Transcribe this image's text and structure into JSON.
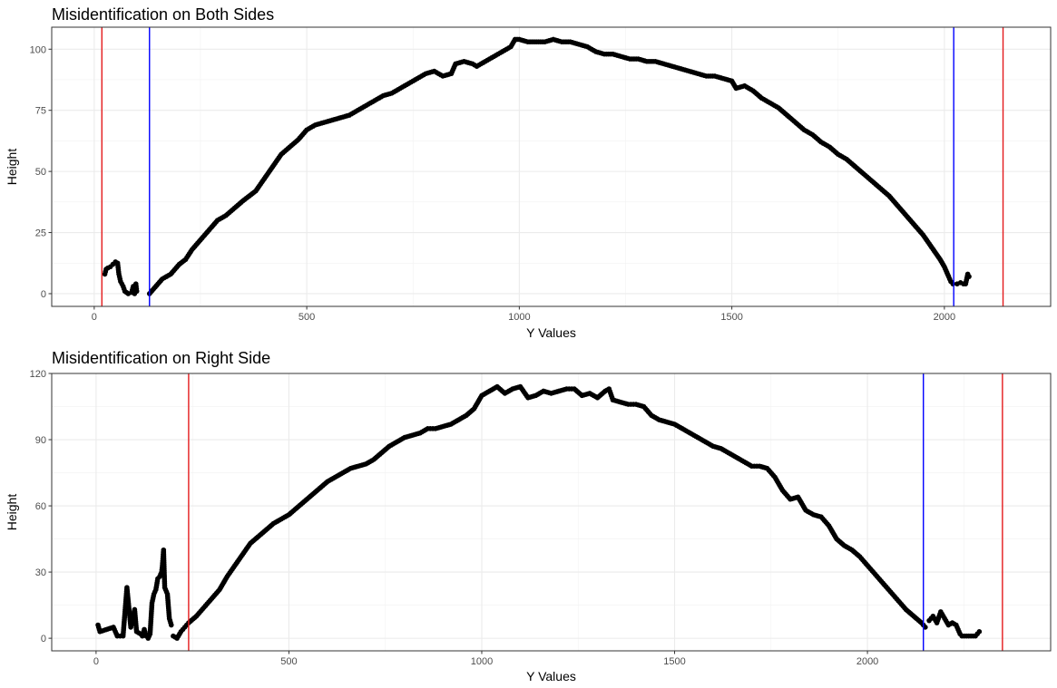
{
  "chart_data": [
    {
      "type": "scatter",
      "title": "Misidentification on Both Sides",
      "xlabel": "Y Values",
      "ylabel": "Height",
      "xlim": [
        -100,
        2250
      ],
      "ylim": [
        -5.2,
        109
      ],
      "x_ticks": [
        0,
        500,
        1000,
        1500,
        2000
      ],
      "y_ticks": [
        0,
        25,
        50,
        75,
        100
      ],
      "grid": true,
      "point_color": "#000000",
      "vlines": [
        {
          "x": 18,
          "color": "#e41a1c"
        },
        {
          "x": 2138,
          "color": "#e41a1c"
        },
        {
          "x": 130,
          "color": "#0000ff"
        },
        {
          "x": 2022,
          "color": "#0000ff"
        }
      ],
      "series": [
        {
          "points": [
            [
              25,
              8
            ],
            [
              28,
              10
            ],
            [
              32,
              10.5
            ],
            [
              38,
              11
            ],
            [
              44,
              12
            ],
            [
              50,
              13
            ],
            [
              55,
              12.5
            ],
            [
              58,
              8
            ],
            [
              62,
              5
            ],
            [
              68,
              3
            ],
            [
              72,
              1
            ],
            [
              80,
              0
            ],
            [
              88,
              0.5
            ],
            [
              92,
              3
            ],
            [
              95,
              0
            ],
            [
              98,
              4
            ],
            [
              100,
              1
            ]
          ]
        },
        {
          "points": [
            [
              130,
              0
            ],
            [
              140,
              2
            ],
            [
              150,
              4
            ],
            [
              160,
              6
            ],
            [
              170,
              7
            ],
            [
              180,
              8
            ],
            [
              190,
              10
            ],
            [
              200,
              12
            ],
            [
              215,
              14
            ],
            [
              230,
              18
            ],
            [
              250,
              22
            ],
            [
              270,
              26
            ],
            [
              290,
              30
            ],
            [
              310,
              32
            ],
            [
              330,
              35
            ],
            [
              350,
              38
            ],
            [
              380,
              42
            ],
            [
              400,
              47
            ],
            [
              420,
              52
            ],
            [
              440,
              57
            ],
            [
              460,
              60
            ],
            [
              480,
              63
            ],
            [
              500,
              67
            ],
            [
              520,
              69
            ],
            [
              540,
              70
            ],
            [
              560,
              71
            ],
            [
              580,
              72
            ],
            [
              600,
              73
            ],
            [
              620,
              75
            ],
            [
              640,
              77
            ],
            [
              660,
              79
            ],
            [
              680,
              81
            ],
            [
              700,
              82
            ],
            [
              720,
              84
            ],
            [
              740,
              86
            ],
            [
              760,
              88
            ],
            [
              780,
              90
            ],
            [
              800,
              91
            ],
            [
              820,
              89
            ],
            [
              840,
              90
            ],
            [
              850,
              94
            ],
            [
              870,
              95
            ],
            [
              890,
              94
            ],
            [
              900,
              93
            ],
            [
              920,
              95
            ],
            [
              940,
              97
            ],
            [
              960,
              99
            ],
            [
              980,
              101
            ],
            [
              990,
              104
            ],
            [
              1000,
              104
            ],
            [
              1020,
              103
            ],
            [
              1040,
              103
            ],
            [
              1060,
              103
            ],
            [
              1080,
              104
            ],
            [
              1100,
              103
            ],
            [
              1120,
              103
            ],
            [
              1140,
              102
            ],
            [
              1160,
              101
            ],
            [
              1180,
              99
            ],
            [
              1200,
              98
            ],
            [
              1220,
              98
            ],
            [
              1240,
              97
            ],
            [
              1260,
              96
            ],
            [
              1280,
              96
            ],
            [
              1300,
              95
            ],
            [
              1320,
              95
            ],
            [
              1340,
              94
            ],
            [
              1360,
              93
            ],
            [
              1380,
              92
            ],
            [
              1400,
              91
            ],
            [
              1420,
              90
            ],
            [
              1440,
              89
            ],
            [
              1460,
              89
            ],
            [
              1480,
              88
            ],
            [
              1500,
              87
            ],
            [
              1510,
              84
            ],
            [
              1530,
              85
            ],
            [
              1550,
              83
            ],
            [
              1570,
              80
            ],
            [
              1590,
              78
            ],
            [
              1610,
              76
            ],
            [
              1630,
              73
            ],
            [
              1650,
              70
            ],
            [
              1670,
              67
            ],
            [
              1690,
              65
            ],
            [
              1710,
              62
            ],
            [
              1730,
              60
            ],
            [
              1750,
              57
            ],
            [
              1770,
              55
            ],
            [
              1790,
              52
            ],
            [
              1810,
              49
            ],
            [
              1830,
              46
            ],
            [
              1850,
              43
            ],
            [
              1870,
              40
            ],
            [
              1890,
              36
            ],
            [
              1910,
              32
            ],
            [
              1930,
              28
            ],
            [
              1950,
              24
            ],
            [
              1970,
              19
            ],
            [
              1990,
              14
            ],
            [
              2000,
              11
            ],
            [
              2010,
              7
            ],
            [
              2015,
              5
            ],
            [
              2020,
              4
            ]
          ]
        },
        {
          "points": [
            [
              2030,
              4
            ],
            [
              2038,
              4.5
            ],
            [
              2045,
              4
            ],
            [
              2050,
              4
            ],
            [
              2055,
              8
            ],
            [
              2058,
              7
            ]
          ]
        }
      ]
    },
    {
      "type": "scatter",
      "title": "Misidentification on Right Side",
      "xlabel": "Y Values",
      "ylabel": "Height",
      "xlim": [
        -115,
        2475
      ],
      "ylim": [
        -5.7,
        120
      ],
      "x_ticks": [
        0,
        500,
        1000,
        1500,
        2000
      ],
      "y_ticks": [
        0,
        30,
        60,
        90,
        120
      ],
      "grid": true,
      "point_color": "#000000",
      "vlines": [
        {
          "x": 240,
          "color": "#e41a1c"
        },
        {
          "x": 2350,
          "color": "#e41a1c"
        },
        {
          "x": 2145,
          "color": "#0000ff"
        }
      ],
      "series": [
        {
          "points": [
            [
              5,
              6
            ],
            [
              10,
              3
            ],
            [
              45,
              5
            ],
            [
              55,
              1
            ],
            [
              70,
              1
            ],
            [
              80,
              23
            ],
            [
              90,
              5
            ],
            [
              100,
              13
            ],
            [
              105,
              3
            ],
            [
              115,
              2
            ],
            [
              120,
              1
            ],
            [
              125,
              4
            ],
            [
              130,
              1
            ],
            [
              135,
              0
            ],
            [
              140,
              2
            ],
            [
              145,
              16
            ],
            [
              150,
              20
            ],
            [
              155,
              22
            ],
            [
              160,
              27
            ],
            [
              165,
              28
            ],
            [
              170,
              30
            ],
            [
              172,
              33
            ],
            [
              175,
              40
            ],
            [
              178,
              23
            ],
            [
              185,
              20
            ],
            [
              190,
              9
            ],
            [
              195,
              6
            ]
          ]
        },
        {
          "points": [
            [
              200,
              1
            ],
            [
              210,
              0
            ],
            [
              220,
              3
            ],
            [
              230,
              5
            ],
            [
              240,
              7
            ],
            [
              260,
              10
            ],
            [
              280,
              14
            ],
            [
              300,
              18
            ],
            [
              320,
              22
            ],
            [
              340,
              28
            ],
            [
              360,
              33
            ],
            [
              380,
              38
            ],
            [
              400,
              43
            ],
            [
              420,
              46
            ],
            [
              440,
              49
            ],
            [
              460,
              52
            ],
            [
              480,
              54
            ],
            [
              500,
              56
            ],
            [
              520,
              59
            ],
            [
              540,
              62
            ],
            [
              560,
              65
            ],
            [
              580,
              68
            ],
            [
              600,
              71
            ],
            [
              620,
              73
            ],
            [
              640,
              75
            ],
            [
              660,
              77
            ],
            [
              680,
              78
            ],
            [
              700,
              79
            ],
            [
              720,
              81
            ],
            [
              740,
              84
            ],
            [
              760,
              87
            ],
            [
              780,
              89
            ],
            [
              800,
              91
            ],
            [
              820,
              92
            ],
            [
              840,
              93
            ],
            [
              860,
              95
            ],
            [
              880,
              95
            ],
            [
              900,
              96
            ],
            [
              920,
              97
            ],
            [
              940,
              99
            ],
            [
              960,
              101
            ],
            [
              980,
              104
            ],
            [
              1000,
              110
            ],
            [
              1020,
              112
            ],
            [
              1040,
              114
            ],
            [
              1060,
              111
            ],
            [
              1080,
              113
            ],
            [
              1100,
              114
            ],
            [
              1120,
              109
            ],
            [
              1140,
              110
            ],
            [
              1160,
              112
            ],
            [
              1180,
              111
            ],
            [
              1200,
              112
            ],
            [
              1220,
              113
            ],
            [
              1240,
              113
            ],
            [
              1260,
              110
            ],
            [
              1280,
              111
            ],
            [
              1300,
              109
            ],
            [
              1320,
              112
            ],
            [
              1330,
              113
            ],
            [
              1340,
              108
            ],
            [
              1360,
              107
            ],
            [
              1380,
              106
            ],
            [
              1400,
              106
            ],
            [
              1420,
              105
            ],
            [
              1440,
              101
            ],
            [
              1460,
              99
            ],
            [
              1480,
              98
            ],
            [
              1500,
              97
            ],
            [
              1520,
              95
            ],
            [
              1540,
              93
            ],
            [
              1560,
              91
            ],
            [
              1580,
              89
            ],
            [
              1600,
              87
            ],
            [
              1620,
              86
            ],
            [
              1640,
              84
            ],
            [
              1660,
              82
            ],
            [
              1680,
              80
            ],
            [
              1700,
              78
            ],
            [
              1720,
              78
            ],
            [
              1740,
              77
            ],
            [
              1760,
              73
            ],
            [
              1780,
              67
            ],
            [
              1800,
              63
            ],
            [
              1820,
              64
            ],
            [
              1840,
              58
            ],
            [
              1860,
              56
            ],
            [
              1880,
              55
            ],
            [
              1900,
              51
            ],
            [
              1920,
              45
            ],
            [
              1940,
              42
            ],
            [
              1960,
              40
            ],
            [
              1980,
              37
            ],
            [
              2000,
              33
            ],
            [
              2020,
              29
            ],
            [
              2040,
              25
            ],
            [
              2060,
              21
            ],
            [
              2080,
              17
            ],
            [
              2100,
              13
            ],
            [
              2120,
              10
            ],
            [
              2140,
              7
            ],
            [
              2150,
              5
            ]
          ]
        },
        {
          "points": [
            [
              2160,
              8
            ],
            [
              2170,
              10
            ],
            [
              2180,
              7
            ],
            [
              2190,
              12
            ],
            [
              2200,
              9
            ],
            [
              2210,
              6
            ],
            [
              2220,
              7
            ],
            [
              2230,
              6
            ],
            [
              2240,
              2
            ],
            [
              2245,
              1
            ],
            [
              2280,
              1
            ],
            [
              2285,
              2
            ],
            [
              2290,
              3
            ]
          ]
        }
      ]
    }
  ]
}
